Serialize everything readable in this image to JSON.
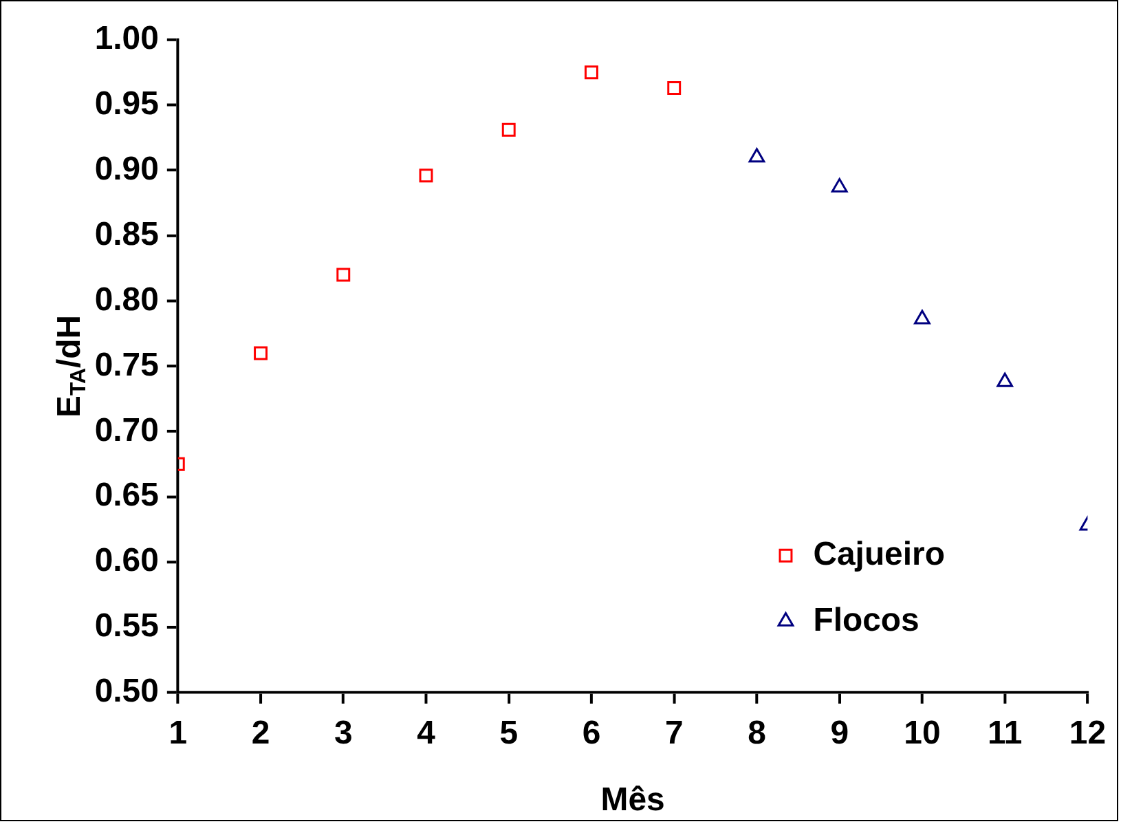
{
  "chart_data": {
    "type": "scatter",
    "xlabel": "Mês",
    "ylabel": "E$_{TA}$/dH",
    "x": [
      1,
      2,
      3,
      4,
      5,
      6,
      7,
      8,
      9,
      10,
      11,
      12
    ],
    "series": [
      {
        "name": "Cajueiro",
        "color": "#ff0000",
        "marker": "square",
        "values": [
          0.675,
          0.76,
          0.82,
          0.896,
          0.931,
          0.975,
          0.963,
          null,
          null,
          null,
          null,
          null
        ]
      },
      {
        "name": "Flocos",
        "color": "#000080",
        "marker": "triangle",
        "values": [
          null,
          null,
          null,
          null,
          null,
          null,
          null,
          0.91,
          0.887,
          0.786,
          0.738,
          0.628
        ]
      }
    ],
    "xlim": [
      1,
      12
    ],
    "xticks": [
      1,
      2,
      3,
      4,
      5,
      6,
      7,
      8,
      9,
      10,
      11,
      12
    ],
    "ylim": [
      0.5,
      1.0
    ],
    "yticks": [
      {
        "value": 0.5,
        "label": "0.50"
      },
      0.55,
      {
        "value": 0.6,
        "label": "0.60"
      },
      0.65,
      {
        "value": 0.7,
        "label": "0.70"
      },
      0.75,
      {
        "value": 0.8,
        "label": "0.80"
      },
      0.85,
      {
        "value": 0.9,
        "label": "0.90"
      },
      0.95,
      {
        "value": 1.0,
        "label": "1.00"
      }
    ],
    "grid": false,
    "legend": "bottom right"
  }
}
